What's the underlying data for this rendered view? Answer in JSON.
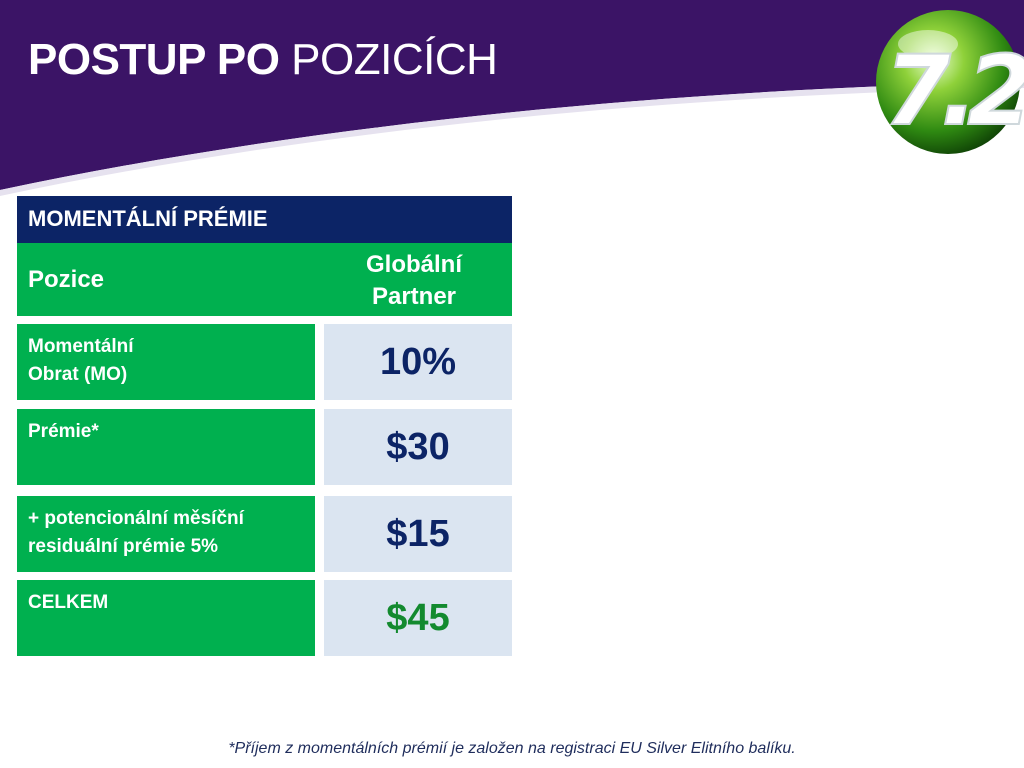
{
  "slide": {
    "title_bold": "POSTUP PO",
    "title_regular": "POZICÍCH",
    "logo_text": "7.2",
    "colors": {
      "header_purple": "#3b1466",
      "table_header_navy": "#0c2466",
      "label_green": "#00b04f",
      "value_bg": "#dbe5f1",
      "value_text": "#0c2466",
      "total_text": "#138a2f"
    }
  },
  "table": {
    "header": "MOMENTÁLNÍ PRÉMIE",
    "position_label": "Pozice",
    "column_line1": "Globální",
    "column_line2": "Partner",
    "rows": [
      {
        "label_line1": "Momentální",
        "label_line2": "Obrat (MO)",
        "value": "10%"
      },
      {
        "label_line1": "Prémie*",
        "label_line2": "",
        "value": "$30"
      },
      {
        "label_line1": "+ potencionální měsíční",
        "label_line2": "residuální prémie 5%",
        "value": "$15"
      },
      {
        "label_line1": "CELKEM",
        "label_line2": "",
        "value": "$45"
      }
    ]
  },
  "footnote": "*Příjem z momentálních prémií  je založen na registraci EU Silver Elitního balíku."
}
